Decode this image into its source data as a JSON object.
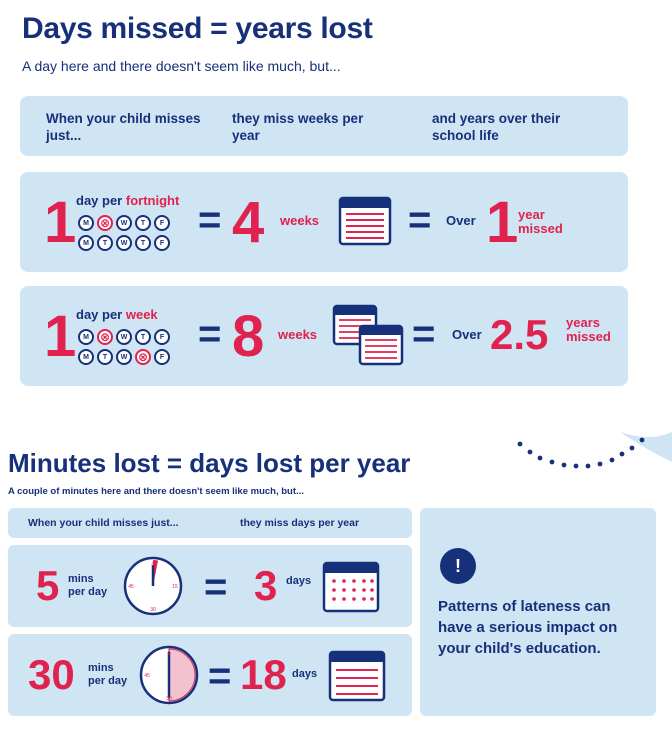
{
  "section1": {
    "title": "Days missed = years lost",
    "subtitle": "A day here and there doesn't seem like much, but...",
    "col1": "When your child misses just...",
    "col2": "they miss weeks per year",
    "col3": "and years over their school life",
    "row1": {
      "num": "1",
      "label_a": "day per ",
      "label_b": "fortnight",
      "result": "4",
      "unit": "weeks",
      "over": "Over",
      "years": "1",
      "years_label_a": "year",
      "years_label_b": "missed"
    },
    "row2": {
      "num": "1",
      "label_a": "day per ",
      "label_b": "week",
      "result": "8",
      "unit": "weeks",
      "over": "Over",
      "years": "2.5",
      "years_label_a": "years",
      "years_label_b": "missed"
    },
    "day_letters": [
      "M",
      "T",
      "W",
      "T",
      "F"
    ]
  },
  "section2": {
    "title": "Minutes lost = days lost per year",
    "subtitle": "A couple of minutes here and there doesn't seem like much, but...",
    "col1": "When your child misses just...",
    "col2": "they miss days per year",
    "row1": {
      "num": "5",
      "unit_a": "mins",
      "unit_b": "per day",
      "result": "3",
      "result_unit": "days"
    },
    "row2": {
      "num": "30",
      "unit_a": "mins",
      "unit_b": "per day",
      "result": "18",
      "result_unit": "days"
    },
    "info_icon": "!",
    "message": "Patterns of lateness can have a serious impact on your child's education.",
    "clock_marks": {
      "top": "0",
      "right": "15",
      "bottom": "30",
      "left": "45"
    }
  },
  "colors": {
    "navy": "#17307a",
    "red": "#e0224e",
    "card": "#cfe5f4"
  }
}
